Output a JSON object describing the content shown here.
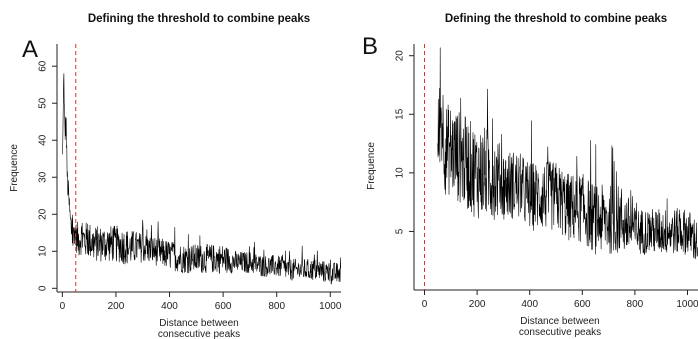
{
  "chart_data": [
    {
      "panel_label": "A",
      "type": "line",
      "title": "Defining the threshold to combine peaks",
      "xlabel_lines": [
        "Distance between",
        "consecutive peaks"
      ],
      "ylabel": "Frequence",
      "xlim": [
        -20,
        1040
      ],
      "ylim": [
        -1,
        66
      ],
      "xticks": [
        0,
        200,
        400,
        600,
        800,
        1000
      ],
      "yticks": [
        0,
        10,
        20,
        30,
        40,
        50,
        60
      ],
      "threshold": {
        "x": 50,
        "color": "#e03030",
        "style": "dashed"
      },
      "series": [
        {
          "color": "#000000",
          "x": [
            1,
            3,
            5,
            7,
            10,
            14,
            18,
            22,
            26,
            30,
            35,
            40,
            45,
            50,
            60,
            70,
            80,
            100,
            120,
            150,
            180,
            200,
            250,
            300,
            350,
            400,
            450,
            500,
            550,
            600,
            650,
            700,
            750,
            800,
            850,
            900,
            950,
            1000,
            1040
          ],
          "y": [
            35,
            45,
            62,
            48,
            42,
            45,
            30,
            26,
            22,
            18,
            15,
            13,
            16,
            14,
            13,
            14,
            13,
            13,
            12,
            12,
            12,
            12,
            11,
            11,
            10,
            9,
            8,
            8,
            8,
            8,
            7,
            7,
            6,
            6,
            5,
            5,
            5,
            4,
            4
          ],
          "noise": [
            4,
            4,
            4,
            4,
            4,
            4,
            4,
            4,
            4,
            4,
            4,
            4,
            4,
            4,
            5,
            5,
            5,
            5,
            5,
            5,
            5,
            5,
            5,
            4,
            4,
            4,
            4,
            4,
            4,
            4,
            3,
            3,
            3,
            3,
            3,
            3,
            3,
            3,
            3
          ]
        }
      ]
    },
    {
      "panel_label": "B",
      "type": "line",
      "title": "Defining the threshold to combine peaks",
      "xlabel_lines": [
        "Distance between",
        "consecutive peaks"
      ],
      "ylabel": "Frequence",
      "xlim": [
        -40,
        1040
      ],
      "ylim": [
        0,
        21
      ],
      "xticks": [
        0,
        200,
        400,
        600,
        800,
        1000
      ],
      "yticks": [
        5,
        10,
        15,
        20
      ],
      "threshold": {
        "x": 0,
        "color": "#e03030",
        "style": "dashed"
      },
      "series": [
        {
          "color": "#000000",
          "x": [
            50,
            60,
            70,
            80,
            100,
            150,
            200,
            250,
            300,
            350,
            400,
            450,
            500,
            550,
            600,
            650,
            700,
            750,
            800,
            850,
            900,
            950,
            1000,
            1040
          ],
          "y": [
            12,
            15,
            14,
            12,
            12,
            11,
            10,
            10,
            9,
            9,
            8,
            8,
            8,
            7,
            7,
            6,
            6,
            6,
            5,
            5,
            5,
            5,
            5,
            4
          ],
          "noise": [
            4,
            4,
            4,
            4,
            4,
            4,
            4,
            4,
            3,
            3,
            3,
            3,
            3,
            3,
            3,
            3,
            3,
            3,
            2,
            2,
            2,
            2,
            2,
            2
          ]
        }
      ]
    }
  ]
}
